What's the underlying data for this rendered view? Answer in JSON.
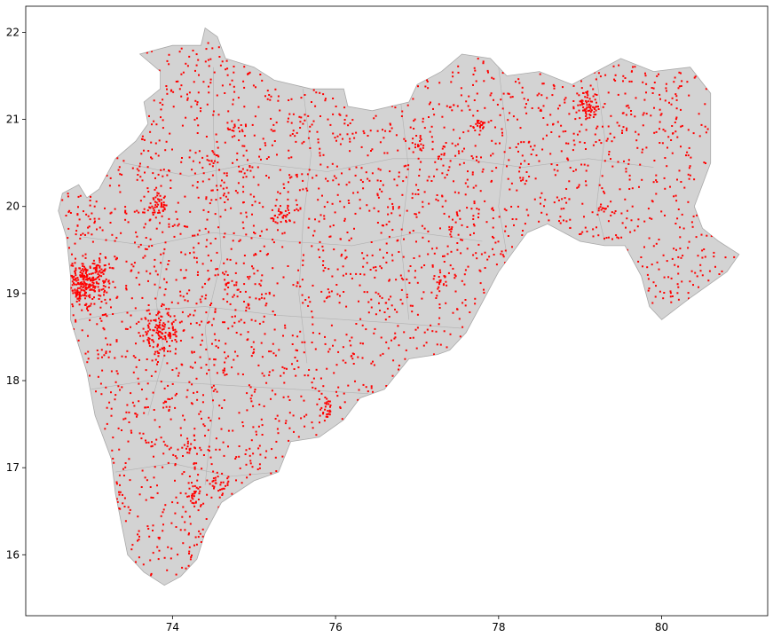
{
  "chart_data": {
    "type": "scatter",
    "title": "",
    "xlabel": "",
    "ylabel": "",
    "xlim": [
      72.2,
      81.3
    ],
    "ylim": [
      15.3,
      22.3
    ],
    "xticks": [
      {
        "value": 74,
        "label": "74"
      },
      {
        "value": 76,
        "label": "76"
      },
      {
        "value": 78,
        "label": "78"
      },
      {
        "value": 80,
        "label": "80"
      }
    ],
    "yticks": [
      {
        "value": 16,
        "label": "16"
      },
      {
        "value": 17,
        "label": "17"
      },
      {
        "value": 18,
        "label": "18"
      },
      {
        "value": 19,
        "label": "19"
      },
      {
        "value": 20,
        "label": "20"
      },
      {
        "value": 21,
        "label": "21"
      },
      {
        "value": 22,
        "label": "22"
      }
    ],
    "grid": false,
    "base_map": {
      "fill_color": "#d3d3d3",
      "outline_color": "#a9a9a9",
      "outline": [
        [
          72.65,
          20.15
        ],
        [
          72.85,
          20.25
        ],
        [
          72.95,
          20.1
        ],
        [
          73.1,
          20.2
        ],
        [
          73.3,
          20.55
        ],
        [
          73.55,
          20.75
        ],
        [
          73.7,
          20.95
        ],
        [
          73.65,
          21.2
        ],
        [
          73.85,
          21.35
        ],
        [
          73.85,
          21.55
        ],
        [
          73.6,
          21.75
        ],
        [
          74.0,
          21.85
        ],
        [
          74.35,
          21.85
        ],
        [
          74.4,
          22.05
        ],
        [
          74.55,
          21.95
        ],
        [
          74.65,
          21.7
        ],
        [
          75.0,
          21.6
        ],
        [
          75.25,
          21.45
        ],
        [
          75.7,
          21.35
        ],
        [
          76.1,
          21.35
        ],
        [
          76.15,
          21.15
        ],
        [
          76.45,
          21.1
        ],
        [
          76.9,
          21.2
        ],
        [
          77.0,
          21.4
        ],
        [
          77.3,
          21.55
        ],
        [
          77.55,
          21.75
        ],
        [
          77.9,
          21.7
        ],
        [
          78.1,
          21.5
        ],
        [
          78.5,
          21.55
        ],
        [
          78.9,
          21.4
        ],
        [
          79.2,
          21.55
        ],
        [
          79.5,
          21.7
        ],
        [
          79.9,
          21.55
        ],
        [
          80.35,
          21.6
        ],
        [
          80.6,
          21.3
        ],
        [
          80.6,
          21.0
        ],
        [
          80.6,
          20.5
        ],
        [
          80.4,
          20.0
        ],
        [
          80.5,
          19.75
        ],
        [
          80.7,
          19.6
        ],
        [
          80.95,
          19.45
        ],
        [
          80.8,
          19.25
        ],
        [
          80.35,
          18.95
        ],
        [
          80.0,
          18.7
        ],
        [
          79.85,
          18.85
        ],
        [
          79.75,
          19.2
        ],
        [
          79.55,
          19.55
        ],
        [
          79.3,
          19.55
        ],
        [
          79.0,
          19.6
        ],
        [
          78.6,
          19.8
        ],
        [
          78.35,
          19.7
        ],
        [
          78.0,
          19.25
        ],
        [
          77.8,
          18.9
        ],
        [
          77.6,
          18.55
        ],
        [
          77.4,
          18.35
        ],
        [
          77.25,
          18.3
        ],
        [
          76.9,
          18.25
        ],
        [
          76.6,
          17.9
        ],
        [
          76.3,
          17.8
        ],
        [
          76.1,
          17.55
        ],
        [
          75.8,
          17.35
        ],
        [
          75.45,
          17.3
        ],
        [
          75.3,
          16.95
        ],
        [
          75.0,
          16.85
        ],
        [
          74.6,
          16.6
        ],
        [
          74.4,
          16.25
        ],
        [
          74.3,
          15.95
        ],
        [
          74.1,
          15.75
        ],
        [
          73.9,
          15.65
        ],
        [
          73.65,
          15.8
        ],
        [
          73.45,
          16.0
        ],
        [
          73.3,
          16.7
        ],
        [
          73.25,
          17.1
        ],
        [
          73.05,
          17.6
        ],
        [
          72.95,
          18.1
        ],
        [
          72.75,
          18.7
        ],
        [
          72.75,
          19.2
        ],
        [
          72.7,
          19.65
        ],
        [
          72.6,
          19.95
        ]
      ],
      "district_lines": [
        [
          [
            73.4,
            20.5
          ],
          [
            74.2,
            20.35
          ],
          [
            75.0,
            20.5
          ],
          [
            75.9,
            20.4
          ],
          [
            76.7,
            20.55
          ],
          [
            77.5,
            20.55
          ],
          [
            78.3,
            20.45
          ],
          [
            79.1,
            20.55
          ],
          [
            79.9,
            20.45
          ]
        ],
        [
          [
            72.9,
            19.65
          ],
          [
            73.7,
            19.55
          ],
          [
            74.5,
            19.7
          ],
          [
            75.4,
            19.6
          ],
          [
            76.2,
            19.55
          ],
          [
            77.0,
            19.7
          ],
          [
            77.8,
            19.6
          ]
        ],
        [
          [
            72.85,
            18.7
          ],
          [
            73.5,
            18.8
          ],
          [
            74.4,
            18.85
          ],
          [
            75.3,
            18.75
          ],
          [
            76.1,
            18.7
          ],
          [
            76.9,
            18.65
          ],
          [
            77.55,
            18.6
          ]
        ],
        [
          [
            73.0,
            17.9
          ],
          [
            73.7,
            18.0
          ],
          [
            74.6,
            17.95
          ],
          [
            75.5,
            17.9
          ],
          [
            76.4,
            17.85
          ]
        ],
        [
          [
            73.3,
            16.95
          ],
          [
            74.0,
            17.05
          ],
          [
            74.7,
            16.9
          ],
          [
            75.3,
            16.95
          ]
        ],
        [
          [
            74.5,
            21.6
          ],
          [
            74.5,
            20.9
          ],
          [
            74.55,
            20.2
          ],
          [
            74.6,
            19.4
          ],
          [
            74.4,
            18.6
          ],
          [
            74.5,
            17.7
          ],
          [
            74.4,
            16.8
          ]
        ],
        [
          [
            75.6,
            21.35
          ],
          [
            75.7,
            20.6
          ],
          [
            75.6,
            19.8
          ],
          [
            75.55,
            19.0
          ],
          [
            75.65,
            18.2
          ]
        ],
        [
          [
            76.8,
            21.2
          ],
          [
            76.9,
            20.4
          ],
          [
            76.8,
            19.6
          ],
          [
            76.9,
            18.7
          ]
        ],
        [
          [
            78.0,
            21.6
          ],
          [
            78.1,
            20.8
          ],
          [
            78.0,
            20.0
          ],
          [
            78.1,
            19.45
          ]
        ],
        [
          [
            79.2,
            21.5
          ],
          [
            79.3,
            20.8
          ],
          [
            79.2,
            20.0
          ],
          [
            79.3,
            19.6
          ]
        ],
        [
          [
            73.9,
            19.5
          ],
          [
            73.8,
            18.9
          ],
          [
            73.9,
            18.3
          ],
          [
            73.7,
            17.6
          ]
        ]
      ]
    },
    "series": [
      {
        "marker_color": "#ff0000",
        "marker": "dot",
        "clusters": [
          {
            "x": 72.9,
            "y": 19.1,
            "n": 180,
            "spread": 0.12
          },
          {
            "x": 73.1,
            "y": 19.2,
            "n": 60,
            "spread": 0.1
          },
          {
            "x": 73.85,
            "y": 18.55,
            "n": 130,
            "spread": 0.12
          },
          {
            "x": 79.1,
            "y": 21.15,
            "n": 70,
            "spread": 0.08
          },
          {
            "x": 73.8,
            "y": 20.0,
            "n": 45,
            "spread": 0.07
          },
          {
            "x": 75.35,
            "y": 19.88,
            "n": 35,
            "spread": 0.07
          },
          {
            "x": 75.9,
            "y": 17.67,
            "n": 25,
            "spread": 0.05
          },
          {
            "x": 74.55,
            "y": 16.82,
            "n": 30,
            "spread": 0.08
          },
          {
            "x": 74.25,
            "y": 16.7,
            "n": 25,
            "spread": 0.06
          },
          {
            "x": 77.75,
            "y": 20.93,
            "n": 20,
            "spread": 0.04
          },
          {
            "x": 77.3,
            "y": 19.15,
            "n": 15,
            "spread": 0.05
          },
          {
            "x": 77.0,
            "y": 20.7,
            "n": 12,
            "spread": 0.04
          },
          {
            "x": 74.75,
            "y": 20.9,
            "n": 12,
            "spread": 0.04
          },
          {
            "x": 74.5,
            "y": 20.55,
            "n": 12,
            "spread": 0.05
          },
          {
            "x": 74.2,
            "y": 17.25,
            "n": 15,
            "spread": 0.06
          },
          {
            "x": 74.7,
            "y": 19.1,
            "n": 12,
            "spread": 0.05
          },
          {
            "x": 73.95,
            "y": 17.7,
            "n": 10,
            "spread": 0.05
          },
          {
            "x": 79.3,
            "y": 19.95,
            "n": 10,
            "spread": 0.04
          },
          {
            "x": 72.95,
            "y": 19.85,
            "n": 15,
            "spread": 0.08
          },
          {
            "x": 75.6,
            "y": 21.0,
            "n": 10,
            "spread": 0.05
          }
        ],
        "scatter_density": 2600
      }
    ]
  }
}
